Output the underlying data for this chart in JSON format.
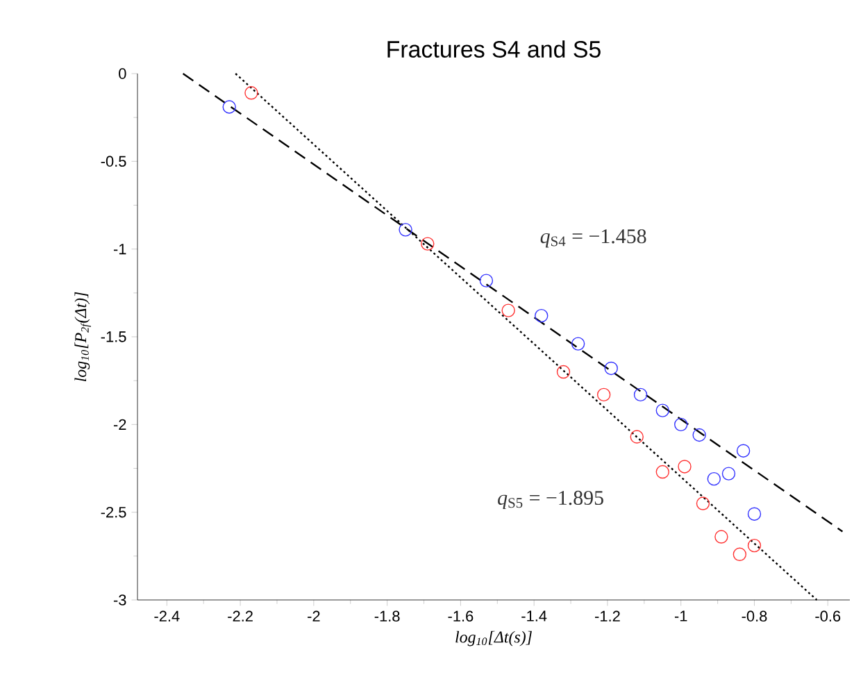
{
  "chart_data": {
    "type": "scatter",
    "title": "Fractures S4 and S5",
    "xlabel": "log$_{10}$[Δt(s)]",
    "ylabel": "log$_{10}$[P$_{2f}$(Δt)]",
    "xlim": [
      -2.48,
      -0.54
    ],
    "ylim": [
      -3,
      0
    ],
    "xticks": [
      -2.4,
      -2.2,
      -2,
      -1.8,
      -1.6,
      -1.4,
      -1.2,
      -1,
      -0.8,
      -0.6
    ],
    "yticks": [
      -3,
      -2.5,
      -2,
      -1.5,
      -1,
      -0.5,
      0
    ],
    "grid": false,
    "series": [
      {
        "marker": "circle",
        "color": "#3333ff",
        "x": [
          -2.23,
          -1.75,
          -1.53,
          -1.38,
          -1.28,
          -1.19,
          -1.11,
          -1.05,
          -1.0,
          -0.95,
          -0.91,
          -0.87,
          -0.83,
          -0.8
        ],
        "values": [
          -0.19,
          -0.89,
          -1.18,
          -1.38,
          -1.54,
          -1.68,
          -1.83,
          -1.92,
          -2.0,
          -2.06,
          -2.31,
          -2.28,
          -2.15,
          -2.51
        ]
      },
      {
        "marker": "circle",
        "color": "#ff3333",
        "x": [
          -2.17,
          -1.69,
          -1.47,
          -1.32,
          -1.21,
          -1.12,
          -1.05,
          -0.99,
          -0.94,
          -0.89,
          -0.84,
          -0.8
        ],
        "values": [
          -0.11,
          -0.97,
          -1.35,
          -1.7,
          -1.83,
          -2.07,
          -2.27,
          -2.24,
          -2.45,
          -2.64,
          -2.74,
          -2.69
        ]
      },
      {
        "type": "line",
        "line_style": "dashed",
        "color": "#000000",
        "x": [
          -2.356,
          -0.56
        ],
        "values": [
          0,
          -2.61
        ]
      },
      {
        "type": "line",
        "line_style": "dotted",
        "color": "#000000",
        "x": [
          -2.213,
          -0.63
        ],
        "values": [
          0,
          -3.0
        ]
      }
    ],
    "annotations": [
      "*q*$_{S4}$ = −1.458",
      "*q*$_{S5}$ = −1.895"
    ]
  }
}
